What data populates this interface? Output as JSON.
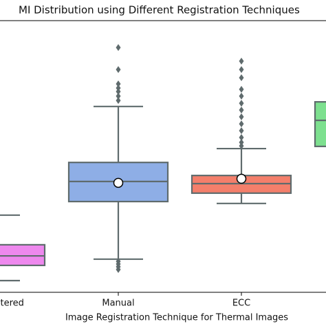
{
  "chart_data": {
    "type": "box",
    "title": "MI Distribution using Different Registration Techniques",
    "xlabel": "Image Registration Technique for Thermal Images",
    "categories": [
      "Unregistered",
      "Manual",
      "ECC",
      null
    ],
    "ylim": [
      0,
      1
    ],
    "edge_color": "#5f6b6d",
    "boxes": [
      {
        "color": "#ee88ee",
        "whislo": 0.043,
        "q1": 0.099,
        "med": 0.134,
        "q3": 0.175,
        "whishi": 0.284,
        "fliers": []
      },
      {
        "color": "#8eaee6",
        "whislo": 0.122,
        "q1": 0.334,
        "med": 0.408,
        "q3": 0.478,
        "whishi": 0.684,
        "mean": 0.403,
        "fliers": [
          0.901,
          0.82,
          0.767,
          0.752,
          0.739,
          0.722,
          0.706,
          0.114,
          0.104,
          0.094,
          0.084
        ]
      },
      {
        "color": "#f47f6b",
        "whislo": 0.327,
        "q1": 0.365,
        "med": 0.4,
        "q3": 0.43,
        "whishi": 0.529,
        "mean": 0.418,
        "fliers": [
          0.851,
          0.82,
          0.79,
          0.747,
          0.722,
          0.696,
          0.671,
          0.646,
          0.62,
          0.595,
          0.57,
          0.552,
          0.539
        ]
      },
      {
        "color": "#7de08f",
        "q1": 0.537,
        "med": 0.633,
        "q3": 0.701,
        "fliers": []
      }
    ]
  }
}
